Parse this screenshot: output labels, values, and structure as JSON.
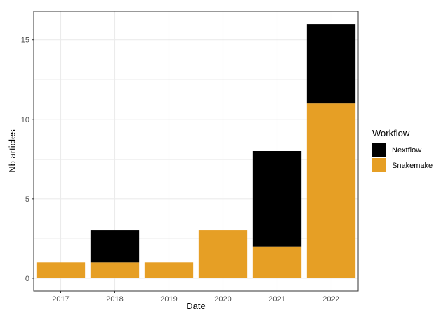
{
  "chart_data": {
    "type": "bar",
    "stacked": true,
    "categories": [
      "2017",
      "2018",
      "2019",
      "2020",
      "2021",
      "2022"
    ],
    "series": [
      {
        "name": "Snakemake",
        "color": "#E69F25",
        "values": [
          1,
          1,
          1,
          3,
          2,
          11
        ]
      },
      {
        "name": "Nextflow",
        "color": "#000000",
        "values": [
          0,
          2,
          0,
          0,
          6,
          5
        ]
      }
    ],
    "xlabel": "Date",
    "ylabel": "Nb articles",
    "ylim": [
      -0.8,
      16.8
    ],
    "yticks": [
      0,
      5,
      10,
      15
    ],
    "grid": true,
    "legend": {
      "title": "Workflow",
      "position": "right",
      "entries": [
        "Nextflow",
        "Snakemake"
      ]
    }
  }
}
